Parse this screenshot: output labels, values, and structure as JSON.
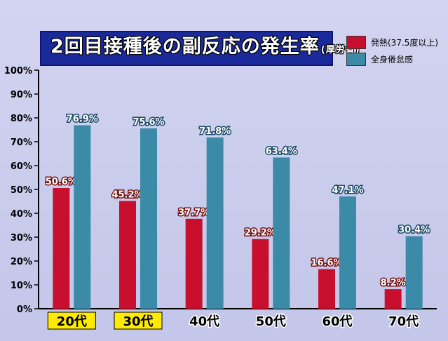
{
  "header": {
    "title": "2回目接種後の副反応の発生率",
    "subtitle": "(厚労省)"
  },
  "legend": [
    {
      "label": "発熱(37.5度以上)",
      "color": "#c8102e"
    },
    {
      "label": "全身倦怠感",
      "color": "#3a8aa8"
    }
  ],
  "chart_data": {
    "type": "bar",
    "title": "2回目接種後の副反応の発生率(厚労省)",
    "categories": [
      "20代",
      "30代",
      "40代",
      "50代",
      "60代",
      "70代"
    ],
    "highlighted_categories": [
      "20代",
      "30代"
    ],
    "series": [
      {
        "name": "発熱(37.5度以上)",
        "color": "#c8102e",
        "values": [
          50.6,
          45.2,
          37.7,
          29.2,
          16.6,
          8.2
        ],
        "labels": [
          "50.6%",
          "45.2%",
          "37.7%",
          "29.2%",
          "16.6%",
          "8.2%"
        ]
      },
      {
        "name": "全身倦怠感",
        "color": "#3a8aa8",
        "values": [
          76.9,
          75.6,
          71.8,
          63.4,
          47.1,
          30.4
        ],
        "labels": [
          "76.9%",
          "75.6%",
          "71.8%",
          "63.4%",
          "47.1%",
          "30.4%"
        ]
      }
    ],
    "yticks": [
      "0%",
      "10%",
      "20%",
      "30%",
      "40%",
      "50%",
      "60%",
      "70%",
      "80%",
      "90%",
      "100%"
    ],
    "ylim": [
      0,
      100
    ],
    "xlabel": "",
    "ylabel": "",
    "grid": false,
    "legend_position": "top-right"
  }
}
